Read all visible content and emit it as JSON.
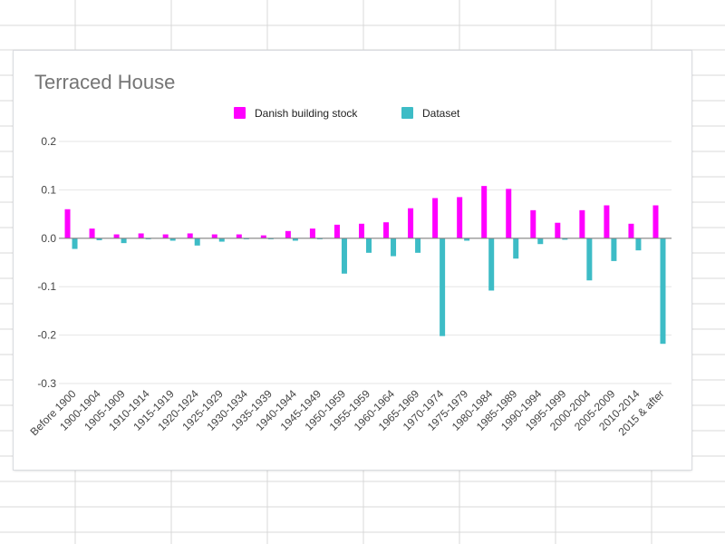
{
  "colors": {
    "series_1": "#ff00ff",
    "series_2": "#3dbcc6",
    "gridline": "#e6e6e6",
    "zero_line": "#808080",
    "sheet_grid": "#d9d9d9"
  },
  "chart_data": {
    "type": "bar",
    "title": "Terraced House",
    "xlabel": "",
    "ylabel": "",
    "ylim": [
      -0.3,
      0.2
    ],
    "yticks": [
      "0.2",
      "0.1",
      "0.0",
      "-0.1",
      "-0.2",
      "-0.3"
    ],
    "ytick_values": [
      0.2,
      0.1,
      0.0,
      -0.1,
      -0.2,
      -0.3
    ],
    "grid": true,
    "legend_position": "top",
    "categories": [
      "Before 1900",
      "1900-1904",
      "1905-1909",
      "1910-1914",
      "1915-1919",
      "1920-1924",
      "1925-1929",
      "1930-1934",
      "1935-1939",
      "1940-1944",
      "1945-1949",
      "1950-1959",
      "1955-1959",
      "1960-1964",
      "1965-1969",
      "1970-1974",
      "1975-1979",
      "1980-1984",
      "1985-1989",
      "1990-1994",
      "1995-1999",
      "2000-2004",
      "2005-2009",
      "2010-2014",
      "2015 & after"
    ],
    "series": [
      {
        "name": "Danish building stock",
        "color_key": "series_1",
        "values": [
          0.06,
          0.02,
          0.008,
          0.01,
          0.008,
          0.01,
          0.008,
          0.008,
          0.006,
          0.015,
          0.02,
          0.028,
          0.03,
          0.033,
          0.062,
          0.083,
          0.085,
          0.108,
          0.102,
          0.058,
          0.032,
          0.058,
          0.068,
          0.03,
          0.068
        ]
      },
      {
        "name": "Dataset",
        "color_key": "series_2",
        "values": [
          -0.022,
          -0.004,
          -0.01,
          -0.002,
          -0.005,
          -0.015,
          -0.007,
          -0.002,
          -0.002,
          -0.005,
          -0.002,
          -0.073,
          -0.03,
          -0.037,
          -0.03,
          -0.202,
          -0.005,
          -0.108,
          -0.042,
          -0.012,
          -0.003,
          -0.087,
          -0.047,
          -0.025,
          -0.218
        ]
      }
    ]
  }
}
